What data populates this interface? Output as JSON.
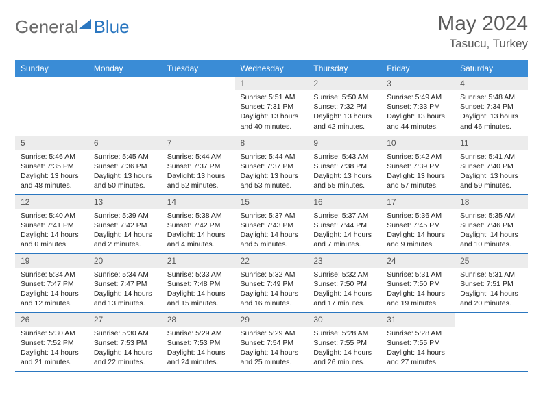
{
  "brand": {
    "part1": "General",
    "part2": "Blue"
  },
  "title": "May 2024",
  "location": "Tasucu, Turkey",
  "colors": {
    "header_bg": "#3a8cd6",
    "border": "#2b77c0",
    "daynum_bg": "#ececec",
    "text": "#222222",
    "muted": "#5a5a5a"
  },
  "weekdays": [
    "Sunday",
    "Monday",
    "Tuesday",
    "Wednesday",
    "Thursday",
    "Friday",
    "Saturday"
  ],
  "weeks": [
    [
      null,
      null,
      null,
      {
        "n": "1",
        "sr": "Sunrise: 5:51 AM",
        "ss": "Sunset: 7:31 PM",
        "d1": "Daylight: 13 hours",
        "d2": "and 40 minutes."
      },
      {
        "n": "2",
        "sr": "Sunrise: 5:50 AM",
        "ss": "Sunset: 7:32 PM",
        "d1": "Daylight: 13 hours",
        "d2": "and 42 minutes."
      },
      {
        "n": "3",
        "sr": "Sunrise: 5:49 AM",
        "ss": "Sunset: 7:33 PM",
        "d1": "Daylight: 13 hours",
        "d2": "and 44 minutes."
      },
      {
        "n": "4",
        "sr": "Sunrise: 5:48 AM",
        "ss": "Sunset: 7:34 PM",
        "d1": "Daylight: 13 hours",
        "d2": "and 46 minutes."
      }
    ],
    [
      {
        "n": "5",
        "sr": "Sunrise: 5:46 AM",
        "ss": "Sunset: 7:35 PM",
        "d1": "Daylight: 13 hours",
        "d2": "and 48 minutes."
      },
      {
        "n": "6",
        "sr": "Sunrise: 5:45 AM",
        "ss": "Sunset: 7:36 PM",
        "d1": "Daylight: 13 hours",
        "d2": "and 50 minutes."
      },
      {
        "n": "7",
        "sr": "Sunrise: 5:44 AM",
        "ss": "Sunset: 7:37 PM",
        "d1": "Daylight: 13 hours",
        "d2": "and 52 minutes."
      },
      {
        "n": "8",
        "sr": "Sunrise: 5:44 AM",
        "ss": "Sunset: 7:37 PM",
        "d1": "Daylight: 13 hours",
        "d2": "and 53 minutes."
      },
      {
        "n": "9",
        "sr": "Sunrise: 5:43 AM",
        "ss": "Sunset: 7:38 PM",
        "d1": "Daylight: 13 hours",
        "d2": "and 55 minutes."
      },
      {
        "n": "10",
        "sr": "Sunrise: 5:42 AM",
        "ss": "Sunset: 7:39 PM",
        "d1": "Daylight: 13 hours",
        "d2": "and 57 minutes."
      },
      {
        "n": "11",
        "sr": "Sunrise: 5:41 AM",
        "ss": "Sunset: 7:40 PM",
        "d1": "Daylight: 13 hours",
        "d2": "and 59 minutes."
      }
    ],
    [
      {
        "n": "12",
        "sr": "Sunrise: 5:40 AM",
        "ss": "Sunset: 7:41 PM",
        "d1": "Daylight: 14 hours",
        "d2": "and 0 minutes."
      },
      {
        "n": "13",
        "sr": "Sunrise: 5:39 AM",
        "ss": "Sunset: 7:42 PM",
        "d1": "Daylight: 14 hours",
        "d2": "and 2 minutes."
      },
      {
        "n": "14",
        "sr": "Sunrise: 5:38 AM",
        "ss": "Sunset: 7:42 PM",
        "d1": "Daylight: 14 hours",
        "d2": "and 4 minutes."
      },
      {
        "n": "15",
        "sr": "Sunrise: 5:37 AM",
        "ss": "Sunset: 7:43 PM",
        "d1": "Daylight: 14 hours",
        "d2": "and 5 minutes."
      },
      {
        "n": "16",
        "sr": "Sunrise: 5:37 AM",
        "ss": "Sunset: 7:44 PM",
        "d1": "Daylight: 14 hours",
        "d2": "and 7 minutes."
      },
      {
        "n": "17",
        "sr": "Sunrise: 5:36 AM",
        "ss": "Sunset: 7:45 PM",
        "d1": "Daylight: 14 hours",
        "d2": "and 9 minutes."
      },
      {
        "n": "18",
        "sr": "Sunrise: 5:35 AM",
        "ss": "Sunset: 7:46 PM",
        "d1": "Daylight: 14 hours",
        "d2": "and 10 minutes."
      }
    ],
    [
      {
        "n": "19",
        "sr": "Sunrise: 5:34 AM",
        "ss": "Sunset: 7:47 PM",
        "d1": "Daylight: 14 hours",
        "d2": "and 12 minutes."
      },
      {
        "n": "20",
        "sr": "Sunrise: 5:34 AM",
        "ss": "Sunset: 7:47 PM",
        "d1": "Daylight: 14 hours",
        "d2": "and 13 minutes."
      },
      {
        "n": "21",
        "sr": "Sunrise: 5:33 AM",
        "ss": "Sunset: 7:48 PM",
        "d1": "Daylight: 14 hours",
        "d2": "and 15 minutes."
      },
      {
        "n": "22",
        "sr": "Sunrise: 5:32 AM",
        "ss": "Sunset: 7:49 PM",
        "d1": "Daylight: 14 hours",
        "d2": "and 16 minutes."
      },
      {
        "n": "23",
        "sr": "Sunrise: 5:32 AM",
        "ss": "Sunset: 7:50 PM",
        "d1": "Daylight: 14 hours",
        "d2": "and 17 minutes."
      },
      {
        "n": "24",
        "sr": "Sunrise: 5:31 AM",
        "ss": "Sunset: 7:50 PM",
        "d1": "Daylight: 14 hours",
        "d2": "and 19 minutes."
      },
      {
        "n": "25",
        "sr": "Sunrise: 5:31 AM",
        "ss": "Sunset: 7:51 PM",
        "d1": "Daylight: 14 hours",
        "d2": "and 20 minutes."
      }
    ],
    [
      {
        "n": "26",
        "sr": "Sunrise: 5:30 AM",
        "ss": "Sunset: 7:52 PM",
        "d1": "Daylight: 14 hours",
        "d2": "and 21 minutes."
      },
      {
        "n": "27",
        "sr": "Sunrise: 5:30 AM",
        "ss": "Sunset: 7:53 PM",
        "d1": "Daylight: 14 hours",
        "d2": "and 22 minutes."
      },
      {
        "n": "28",
        "sr": "Sunrise: 5:29 AM",
        "ss": "Sunset: 7:53 PM",
        "d1": "Daylight: 14 hours",
        "d2": "and 24 minutes."
      },
      {
        "n": "29",
        "sr": "Sunrise: 5:29 AM",
        "ss": "Sunset: 7:54 PM",
        "d1": "Daylight: 14 hours",
        "d2": "and 25 minutes."
      },
      {
        "n": "30",
        "sr": "Sunrise: 5:28 AM",
        "ss": "Sunset: 7:55 PM",
        "d1": "Daylight: 14 hours",
        "d2": "and 26 minutes."
      },
      {
        "n": "31",
        "sr": "Sunrise: 5:28 AM",
        "ss": "Sunset: 7:55 PM",
        "d1": "Daylight: 14 hours",
        "d2": "and 27 minutes."
      },
      null
    ]
  ]
}
